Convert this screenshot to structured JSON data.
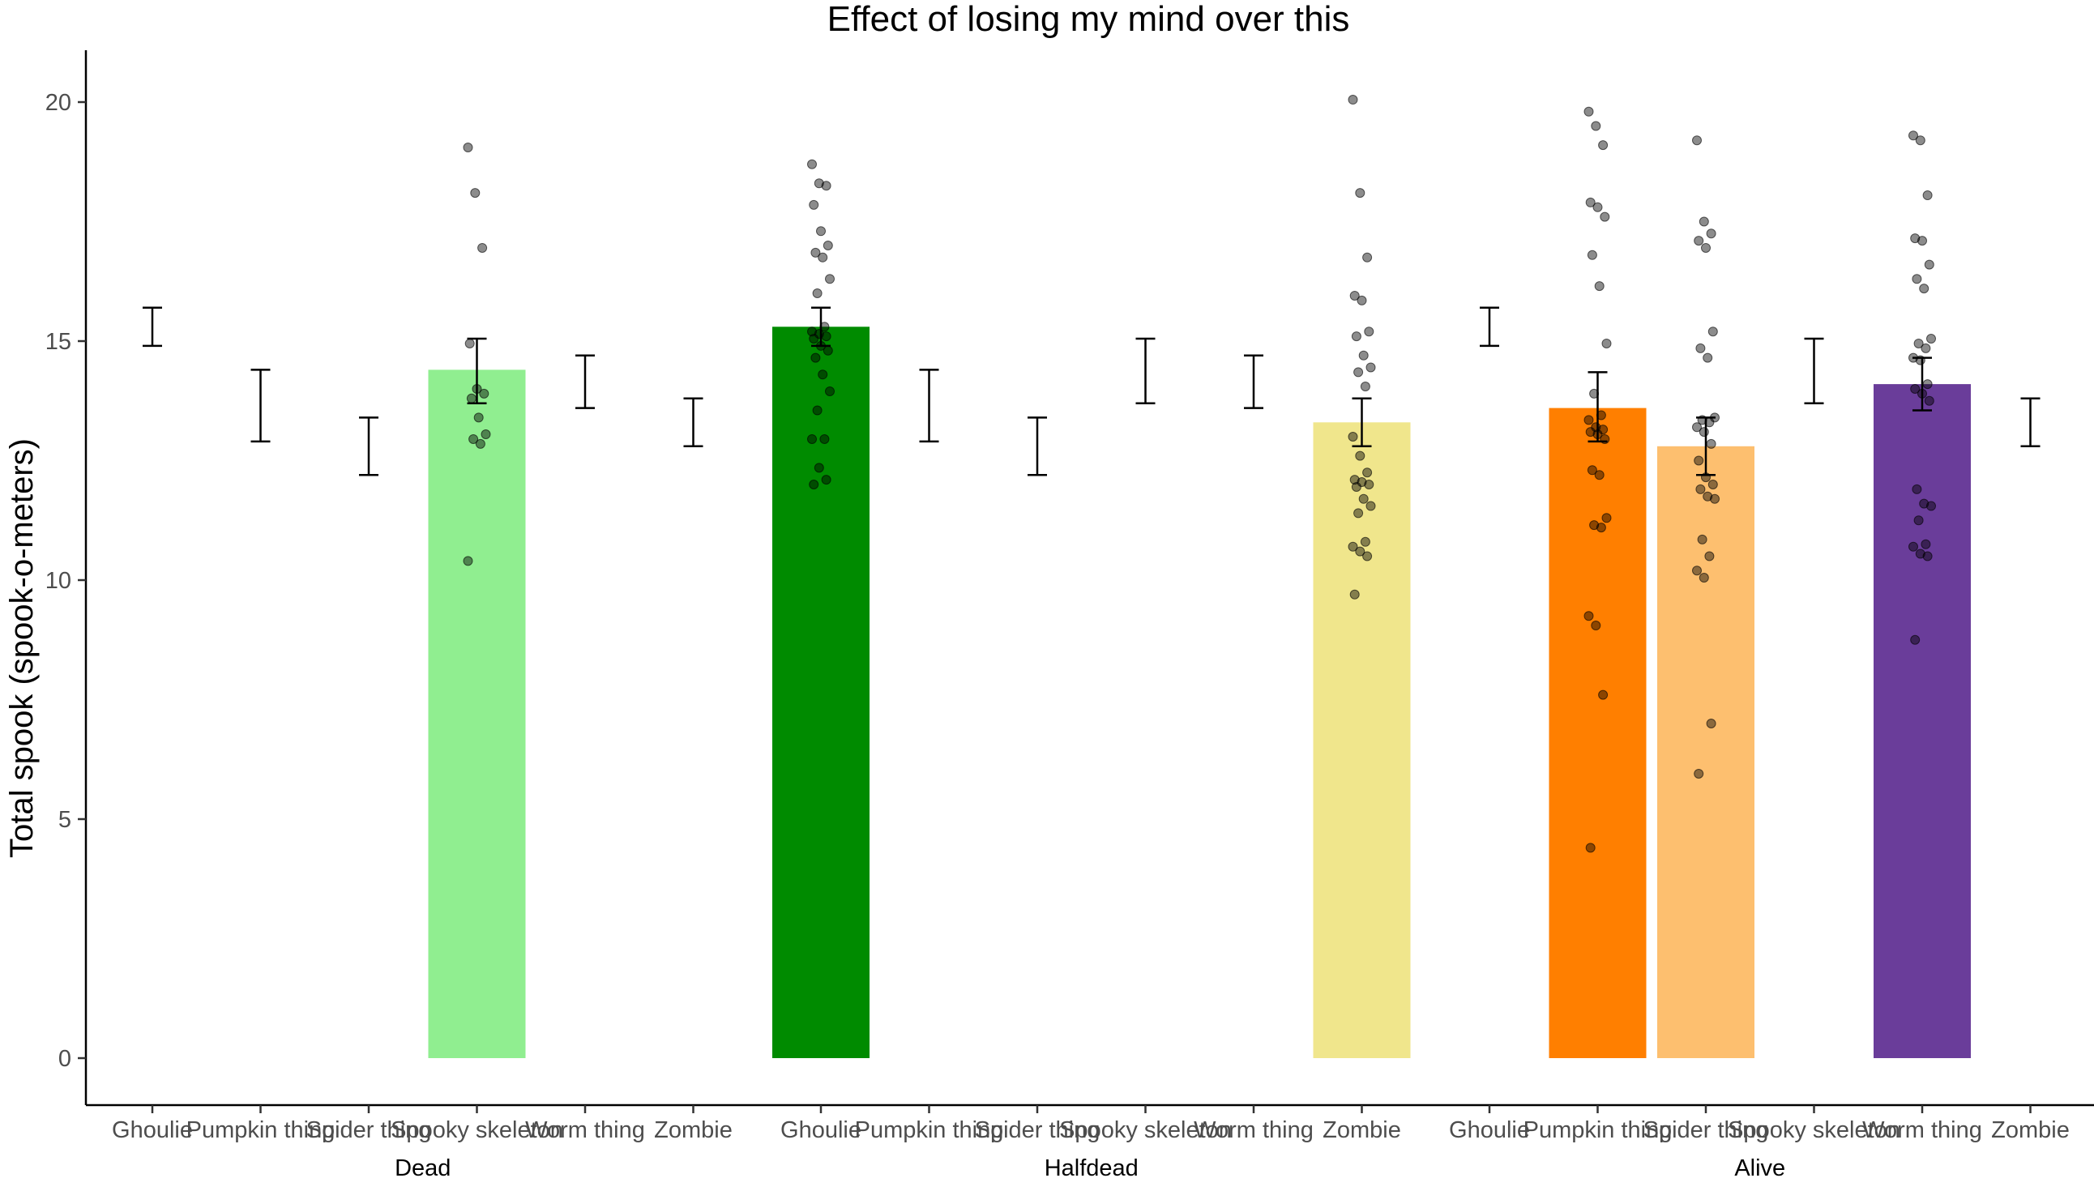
{
  "chart_data": {
    "type": "bar",
    "title": "Effect of losing my mind over this",
    "xlabel": "",
    "ylabel": "Total spook (spook-o-meters)",
    "ylim": [
      -1,
      21
    ],
    "yticks": [
      0,
      5,
      10,
      15,
      20
    ],
    "grid": false,
    "legend": "none",
    "categories": [
      "Ghoulie",
      "Pumpkin thing",
      "Spider thing",
      "Spooky skeleton",
      "Worm thing",
      "Zombie"
    ],
    "groups": [
      "Dead",
      "Halfdead",
      "Alive"
    ],
    "colors": {
      "Dead|Spooky skeleton": "#90ee90",
      "Halfdead|Ghoulie": "#008b00",
      "Halfdead|Zombie": "#f0e68c",
      "Alive|Pumpkin thing": "#ff7f00",
      "Alive|Spider thing": "#fdbf6f",
      "Alive|Worm thing": "#6a3d9a",
      "errorbar": "#000000",
      "point": "#000000"
    },
    "series": [
      {
        "name": "Dead",
        "bars": [
          {
            "category": "Ghoulie",
            "mean": null,
            "err_low": 14.9,
            "err_high": 15.7,
            "points": []
          },
          {
            "category": "Pumpkin thing",
            "mean": null,
            "err_low": 12.9,
            "err_high": 14.4,
            "points": []
          },
          {
            "category": "Spider thing",
            "mean": null,
            "err_low": 12.2,
            "err_high": 13.4,
            "points": []
          },
          {
            "category": "Spooky skeleton",
            "mean": 14.4,
            "err_low": 13.7,
            "err_high": 15.05,
            "points": [
              19.05,
              18.1,
              16.95,
              14.95,
              14.0,
              13.9,
              13.8,
              13.4,
              13.05,
              12.95,
              12.85,
              10.4
            ]
          },
          {
            "category": "Worm thing",
            "mean": null,
            "err_low": 13.6,
            "err_high": 14.7,
            "points": []
          },
          {
            "category": "Zombie",
            "mean": null,
            "err_low": 12.8,
            "err_high": 13.8,
            "points": []
          }
        ]
      },
      {
        "name": "Halfdead",
        "bars": [
          {
            "category": "Ghoulie",
            "mean": 15.3,
            "err_low": 14.9,
            "err_high": 15.7,
            "points": [
              18.7,
              18.3,
              18.25,
              17.85,
              17.3,
              17.0,
              16.85,
              16.75,
              16.3,
              16.0,
              15.3,
              15.2,
              15.15,
              15.1,
              15.05,
              14.9,
              14.8,
              14.65,
              14.3,
              13.95,
              13.55,
              12.95,
              12.95,
              12.35,
              12.1,
              12.0
            ]
          },
          {
            "category": "Pumpkin thing",
            "mean": null,
            "err_low": 12.9,
            "err_high": 14.4,
            "points": []
          },
          {
            "category": "Spider thing",
            "mean": null,
            "err_low": 12.2,
            "err_high": 13.4,
            "points": []
          },
          {
            "category": "Spooky skeleton",
            "mean": null,
            "err_low": 13.7,
            "err_high": 15.05,
            "points": []
          },
          {
            "category": "Worm thing",
            "mean": null,
            "err_low": 13.6,
            "err_high": 14.7,
            "points": []
          },
          {
            "category": "Zombie",
            "mean": 13.3,
            "err_low": 12.8,
            "err_high": 13.8,
            "points": [
              20.05,
              18.1,
              16.75,
              15.95,
              15.85,
              15.2,
              15.1,
              14.7,
              14.45,
              14.35,
              14.05,
              13.0,
              12.6,
              12.25,
              12.1,
              12.05,
              12.0,
              11.95,
              11.7,
              11.55,
              11.4,
              10.8,
              10.7,
              10.6,
              10.5,
              9.7
            ]
          }
        ]
      },
      {
        "name": "Alive",
        "bars": [
          {
            "category": "Ghoulie",
            "mean": null,
            "err_low": 14.9,
            "err_high": 15.7,
            "points": []
          },
          {
            "category": "Pumpkin thing",
            "mean": 13.6,
            "err_low": 12.9,
            "err_high": 14.35,
            "points": [
              19.8,
              19.5,
              19.1,
              17.9,
              17.8,
              17.6,
              16.8,
              16.15,
              14.95,
              13.9,
              13.45,
              13.35,
              13.2,
              13.15,
              13.1,
              13.05,
              12.95,
              12.3,
              12.2,
              11.3,
              11.15,
              11.1,
              9.25,
              9.05,
              7.6,
              4.4
            ]
          },
          {
            "category": "Spider thing",
            "mean": 12.8,
            "err_low": 12.2,
            "err_high": 13.4,
            "points": [
              19.2,
              17.5,
              17.25,
              17.1,
              16.95,
              15.2,
              14.85,
              14.65,
              13.4,
              13.35,
              13.3,
              13.2,
              13.1,
              12.85,
              12.5,
              12.15,
              12.0,
              11.9,
              11.75,
              11.7,
              10.85,
              10.5,
              10.2,
              10.05,
              7.0,
              5.95
            ]
          },
          {
            "category": "Spooky skeleton",
            "mean": null,
            "err_low": 13.7,
            "err_high": 15.05,
            "points": []
          },
          {
            "category": "Worm thing",
            "mean": 14.1,
            "err_low": 13.55,
            "err_high": 14.65,
            "points": [
              19.3,
              19.2,
              18.05,
              17.15,
              17.1,
              16.6,
              16.3,
              16.1,
              15.05,
              14.95,
              14.85,
              14.65,
              14.6,
              14.1,
              14.0,
              13.9,
              13.75,
              11.9,
              11.6,
              11.55,
              11.25,
              10.75,
              10.7,
              10.55,
              10.5,
              8.75
            ]
          },
          {
            "category": "Zombie",
            "mean": null,
            "err_low": 12.8,
            "err_high": 13.8,
            "points": []
          }
        ]
      }
    ]
  }
}
